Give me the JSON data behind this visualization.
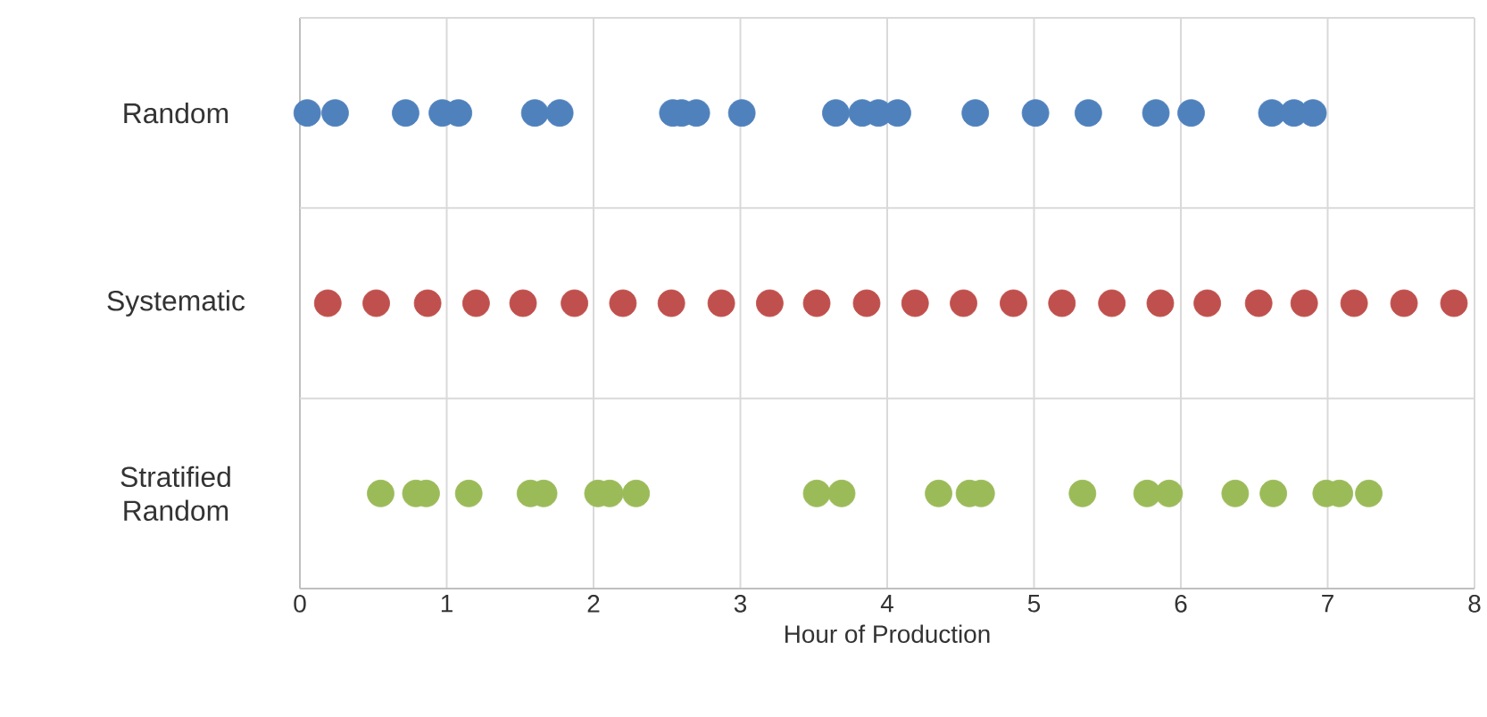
{
  "chart_data": {
    "type": "scatter",
    "orientation": "horizontal",
    "xlabel": "Hour of Production",
    "xlim": [
      0,
      8
    ],
    "xticks": [
      0,
      1,
      2,
      3,
      4,
      5,
      6,
      7,
      8
    ],
    "categories": [
      "Random",
      "Systematic",
      "Stratified Random"
    ],
    "grid": true,
    "series": [
      {
        "color": "#4f81bd",
        "x": [
          "Random",
          "Random",
          "Random",
          "Random",
          "Random",
          "Random",
          "Random",
          "Random",
          "Random",
          "Random",
          "Random",
          "Random",
          "Random",
          "Random",
          "Random",
          "Random",
          "Random",
          "Random",
          "Random",
          "Random",
          "Random",
          "Random",
          "Random"
        ],
        "values": [
          0.05,
          0.24,
          0.72,
          0.97,
          1.08,
          1.6,
          1.77,
          2.54,
          2.6,
          2.7,
          3.01,
          3.65,
          3.83,
          3.94,
          4.07,
          4.6,
          5.01,
          5.37,
          5.83,
          6.07,
          6.62,
          6.77,
          6.9
        ]
      },
      {
        "color": "#c0504d",
        "x": [
          "Systematic",
          "Systematic",
          "Systematic",
          "Systematic",
          "Systematic",
          "Systematic",
          "Systematic",
          "Systematic",
          "Systematic",
          "Systematic",
          "Systematic",
          "Systematic",
          "Systematic",
          "Systematic",
          "Systematic",
          "Systematic",
          "Systematic",
          "Systematic",
          "Systematic",
          "Systematic",
          "Systematic",
          "Systematic",
          "Systematic",
          "Systematic"
        ],
        "values": [
          0.19,
          0.52,
          0.87,
          1.2,
          1.52,
          1.87,
          2.2,
          2.53,
          2.87,
          3.2,
          3.52,
          3.86,
          4.19,
          4.52,
          4.86,
          5.19,
          5.53,
          5.86,
          6.18,
          6.53,
          6.84,
          7.18,
          7.52,
          7.86
        ]
      },
      {
        "color": "#9bbb59",
        "x": [
          "Stratified Random",
          "Stratified Random",
          "Stratified Random",
          "Stratified Random",
          "Stratified Random",
          "Stratified Random",
          "Stratified Random",
          "Stratified Random",
          "Stratified Random",
          "Stratified Random",
          "Stratified Random",
          "Stratified Random",
          "Stratified Random",
          "Stratified Random",
          "Stratified Random",
          "Stratified Random",
          "Stratified Random",
          "Stratified Random",
          "Stratified Random",
          "Stratified Random",
          "Stratified Random",
          "Stratified Random"
        ],
        "values": [
          0.55,
          0.79,
          0.86,
          1.15,
          1.57,
          1.66,
          2.03,
          2.11,
          2.29,
          3.52,
          3.69,
          4.35,
          4.56,
          4.64,
          5.33,
          5.77,
          5.92,
          6.37,
          6.63,
          6.99,
          7.08,
          7.28
        ]
      }
    ]
  }
}
